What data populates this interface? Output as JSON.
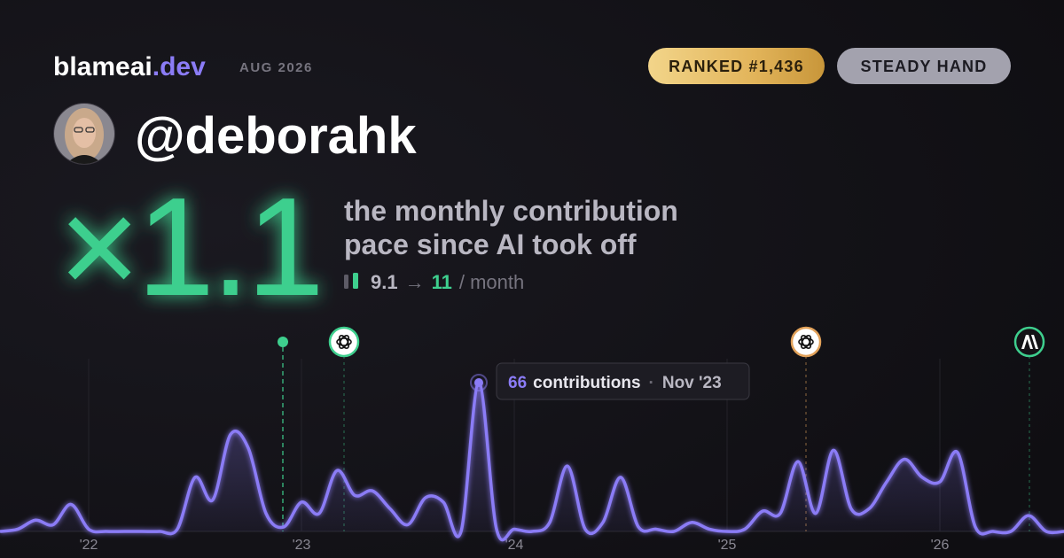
{
  "header": {
    "brand": "blameai",
    "brand_suffix": ".dev",
    "date": "AUG 2026",
    "rank_badge": "RANKED #1,436",
    "style_badge": "STEADY HAND"
  },
  "profile": {
    "handle": "@deborahk"
  },
  "headline": {
    "multiplier": "×1.1",
    "caption_lines": [
      "the monthly contribution",
      "pace since AI took off"
    ],
    "before": 9.1,
    "arrow": "→",
    "after": 11,
    "unit": "/ month"
  },
  "chart_data": {
    "type": "line",
    "color": "#8b7cf6",
    "categories": [
      null,
      null,
      null,
      null,
      null,
      "'22",
      null,
      null,
      null,
      null,
      null,
      null,
      null,
      null,
      null,
      null,
      null,
      "'23",
      null,
      null,
      null,
      null,
      null,
      null,
      null,
      null,
      null,
      null,
      null,
      "'24",
      null,
      null,
      null,
      null,
      null,
      null,
      null,
      null,
      null,
      null,
      null,
      "'25",
      null,
      null,
      null,
      null,
      null,
      null,
      null,
      null,
      null,
      null,
      null,
      "'26",
      null,
      null,
      null,
      null,
      null,
      null,
      null
    ],
    "values": [
      0,
      1,
      5,
      3,
      12,
      1,
      0,
      0,
      0,
      0,
      1,
      24,
      14,
      43,
      37,
      8,
      2,
      13,
      8,
      27,
      16,
      18,
      10,
      3,
      15,
      13,
      0,
      66,
      1,
      1,
      0,
      4,
      29,
      1,
      4,
      24,
      2,
      1,
      0,
      4,
      1,
      0,
      1,
      9,
      8,
      31,
      8,
      36,
      10,
      10,
      22,
      32,
      24,
      22,
      35,
      2,
      0,
      0,
      7,
      0,
      0
    ],
    "tooltip": {
      "unit": "contributions",
      "separator": "·",
      "date": "Nov '23"
    }
  }
}
